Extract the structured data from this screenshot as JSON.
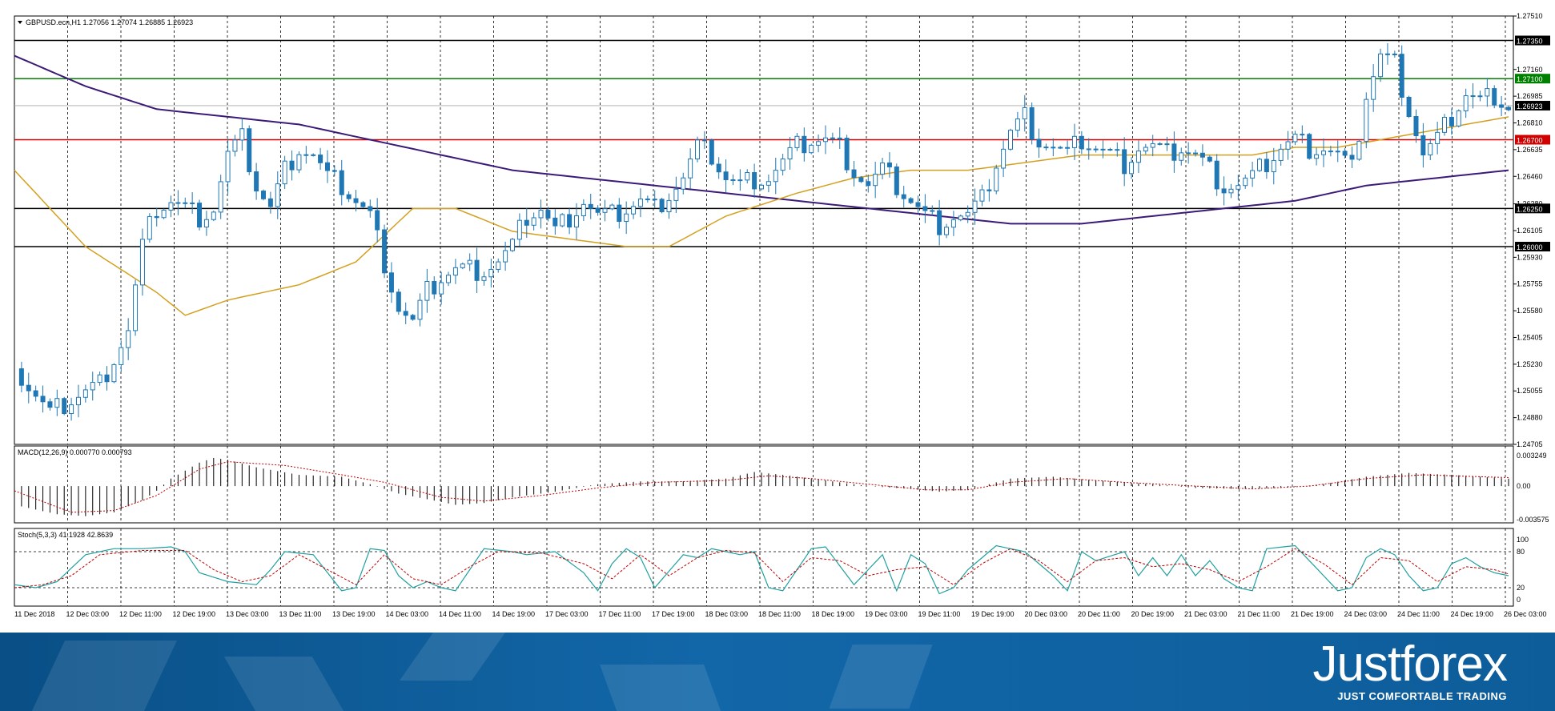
{
  "chart_data": {
    "type": "candlestick",
    "header": {
      "symbol": "GBPUSD.ecn,H1",
      "ohlc": "1.27056 1.27074 1.26885 1.26923"
    },
    "price_axis": {
      "ticks": [
        "1.27510",
        "1.27160",
        "1.26985",
        "1.26810",
        "1.26635",
        "1.26460",
        "1.26280",
        "1.26105",
        "1.25930",
        "1.25755",
        "1.25580",
        "1.25405",
        "1.25230",
        "1.25055",
        "1.24880",
        "1.24705"
      ],
      "range": [
        1.24705,
        1.2751
      ]
    },
    "levels": [
      {
        "price": 1.2735,
        "label": "1.27350",
        "color": "#000000"
      },
      {
        "price": 1.271,
        "label": "1.27100",
        "color": "#008000"
      },
      {
        "price": 1.267,
        "label": "1.26700",
        "color": "#d00000"
      },
      {
        "price": 1.2625,
        "label": "1.26250",
        "color": "#000000"
      },
      {
        "price": 1.26,
        "label": "1.26000",
        "color": "#000000"
      }
    ],
    "current_price": {
      "price": 1.26923,
      "label": "1.26923"
    },
    "time_axis": [
      "11 Dec 2018",
      "12 Dec 03:00",
      "12 Dec 11:00",
      "12 Dec 19:00",
      "13 Dec 03:00",
      "13 Dec 11:00",
      "13 Dec 19:00",
      "14 Dec 03:00",
      "14 Dec 11:00",
      "14 Dec 19:00",
      "17 Dec 03:00",
      "17 Dec 11:00",
      "17 Dec 19:00",
      "18 Dec 03:00",
      "18 Dec 11:00",
      "18 Dec 19:00",
      "19 Dec 03:00",
      "19 Dec 11:00",
      "19 Dec 19:00",
      "20 Dec 03:00",
      "20 Dec 11:00",
      "20 Dec 19:00",
      "21 Dec 03:00",
      "21 Dec 11:00",
      "21 Dec 19:00",
      "24 Dec 03:00",
      "24 Dec 11:00",
      "24 Dec 19:00",
      "26 Dec 03:00"
    ],
    "close_path": [
      [
        0,
        1.252
      ],
      [
        5,
        1.249
      ],
      [
        8,
        1.25
      ],
      [
        12,
        1.251
      ],
      [
        16,
        1.2545
      ],
      [
        18,
        1.26
      ],
      [
        20,
        1.2625
      ],
      [
        22,
        1.263
      ],
      [
        24,
        1.2625
      ],
      [
        26,
        1.262
      ],
      [
        28,
        1.2625
      ],
      [
        30,
        1.266
      ],
      [
        32,
        1.267
      ],
      [
        34,
        1.264
      ],
      [
        36,
        1.2625
      ],
      [
        38,
        1.265
      ],
      [
        40,
        1.2665
      ],
      [
        42,
        1.266
      ],
      [
        44,
        1.2645
      ],
      [
        46,
        1.264
      ],
      [
        48,
        1.263
      ],
      [
        50,
        1.262
      ],
      [
        52,
        1.259
      ],
      [
        54,
        1.256
      ],
      [
        56,
        1.255
      ],
      [
        58,
        1.257
      ],
      [
        60,
        1.258
      ],
      [
        62,
        1.2585
      ],
      [
        64,
        1.2585
      ],
      [
        66,
        1.2585
      ],
      [
        68,
        1.259
      ],
      [
        70,
        1.26
      ],
      [
        72,
        1.262
      ],
      [
        74,
        1.2625
      ],
      [
        76,
        1.261
      ],
      [
        78,
        1.262
      ],
      [
        80,
        1.263
      ],
      [
        82,
        1.262
      ],
      [
        84,
        1.262
      ],
      [
        86,
        1.2625
      ],
      [
        88,
        1.263
      ],
      [
        90,
        1.2625
      ],
      [
        92,
        1.2635
      ],
      [
        94,
        1.2645
      ],
      [
        96,
        1.2665
      ],
      [
        98,
        1.266
      ],
      [
        100,
        1.2645
      ],
      [
        102,
        1.264
      ],
      [
        104,
        1.2645
      ],
      [
        106,
        1.2645
      ],
      [
        108,
        1.2655
      ],
      [
        110,
        1.2665
      ],
      [
        112,
        1.267
      ],
      [
        114,
        1.267
      ],
      [
        116,
        1.2665
      ],
      [
        118,
        1.265
      ],
      [
        120,
        1.264
      ],
      [
        122,
        1.265
      ],
      [
        124,
        1.264
      ],
      [
        126,
        1.263
      ],
      [
        128,
        1.262
      ],
      [
        130,
        1.2615
      ],
      [
        132,
        1.262
      ],
      [
        134,
        1.262
      ],
      [
        136,
        1.263
      ],
      [
        138,
        1.2655
      ],
      [
        140,
        1.2675
      ],
      [
        142,
        1.2685
      ],
      [
        144,
        1.267
      ],
      [
        146,
        1.2665
      ],
      [
        148,
        1.266
      ],
      [
        150,
        1.267
      ],
      [
        152,
        1.2665
      ],
      [
        154,
        1.266
      ],
      [
        156,
        1.2655
      ],
      [
        158,
        1.2665
      ],
      [
        160,
        1.2665
      ],
      [
        162,
        1.266
      ],
      [
        164,
        1.2665
      ],
      [
        166,
        1.266
      ],
      [
        168,
        1.265
      ],
      [
        170,
        1.264
      ],
      [
        172,
        1.264
      ],
      [
        174,
        1.2645
      ],
      [
        176,
        1.2655
      ],
      [
        178,
        1.2665
      ],
      [
        180,
        1.267
      ],
      [
        182,
        1.2665
      ],
      [
        184,
        1.2665
      ],
      [
        186,
        1.266
      ],
      [
        188,
        1.265
      ],
      [
        190,
        1.27
      ],
      [
        192,
        1.2725
      ],
      [
        194,
        1.272
      ],
      [
        196,
        1.269
      ],
      [
        198,
        1.266
      ],
      [
        200,
        1.267
      ],
      [
        202,
        1.2685
      ],
      [
        204,
        1.27
      ],
      [
        206,
        1.2695
      ],
      [
        208,
        1.27
      ],
      [
        210,
        1.2692
      ]
    ],
    "ma_fast": [
      [
        0,
        1.265
      ],
      [
        10,
        1.26
      ],
      [
        20,
        1.257
      ],
      [
        24,
        1.2555
      ],
      [
        30,
        1.2565
      ],
      [
        40,
        1.2575
      ],
      [
        48,
        1.259
      ],
      [
        56,
        1.2625
      ],
      [
        62,
        1.2625
      ],
      [
        70,
        1.261
      ],
      [
        78,
        1.2605
      ],
      [
        86,
        1.26
      ],
      [
        92,
        1.26
      ],
      [
        100,
        1.262
      ],
      [
        110,
        1.2635
      ],
      [
        118,
        1.2645
      ],
      [
        126,
        1.265
      ],
      [
        134,
        1.265
      ],
      [
        142,
        1.2655
      ],
      [
        150,
        1.266
      ],
      [
        158,
        1.266
      ],
      [
        166,
        1.266
      ],
      [
        174,
        1.266
      ],
      [
        180,
        1.2665
      ],
      [
        186,
        1.2665
      ],
      [
        192,
        1.267
      ],
      [
        198,
        1.2675
      ],
      [
        204,
        1.268
      ],
      [
        210,
        1.2685
      ]
    ],
    "ma_slow": [
      [
        0,
        1.2725
      ],
      [
        10,
        1.2705
      ],
      [
        20,
        1.269
      ],
      [
        30,
        1.2685
      ],
      [
        40,
        1.268
      ],
      [
        50,
        1.267
      ],
      [
        60,
        1.266
      ],
      [
        70,
        1.265
      ],
      [
        80,
        1.2645
      ],
      [
        90,
        1.264
      ],
      [
        100,
        1.2635
      ],
      [
        110,
        1.263
      ],
      [
        120,
        1.2625
      ],
      [
        130,
        1.262
      ],
      [
        140,
        1.2615
      ],
      [
        150,
        1.2615
      ],
      [
        160,
        1.262
      ],
      [
        170,
        1.2625
      ],
      [
        180,
        1.263
      ],
      [
        190,
        1.264
      ],
      [
        200,
        1.2645
      ],
      [
        210,
        1.265
      ]
    ],
    "macd": {
      "label": "MACD(12,26,9) 0.000770 0.000793",
      "ticks": [
        "0.003249",
        "0.00",
        "-0.003575"
      ],
      "range": [
        -0.003575,
        0.003249
      ],
      "histogram": [
        [
          0,
          -0.002
        ],
        [
          6,
          -0.003
        ],
        [
          10,
          -0.0032
        ],
        [
          14,
          -0.0028
        ],
        [
          18,
          -0.0015
        ],
        [
          20,
          -0.0005
        ],
        [
          22,
          0.0008
        ],
        [
          26,
          0.0025
        ],
        [
          28,
          0.003
        ],
        [
          30,
          0.0028
        ],
        [
          34,
          0.002
        ],
        [
          40,
          0.0012
        ],
        [
          46,
          0.001
        ],
        [
          50,
          0.0002
        ],
        [
          54,
          -0.0008
        ],
        [
          58,
          -0.0014
        ],
        [
          62,
          -0.002
        ],
        [
          66,
          -0.0018
        ],
        [
          70,
          -0.0012
        ],
        [
          76,
          -0.0006
        ],
        [
          82,
          0.0002
        ],
        [
          88,
          0.0005
        ],
        [
          94,
          0.0005
        ],
        [
          100,
          0.0008
        ],
        [
          104,
          0.0015
        ],
        [
          108,
          0.0012
        ],
        [
          114,
          0.0006
        ],
        [
          120,
          0.0
        ],
        [
          126,
          -0.0003
        ],
        [
          130,
          -0.0006
        ],
        [
          134,
          -0.0004
        ],
        [
          140,
          0.0008
        ],
        [
          146,
          0.001
        ],
        [
          152,
          0.0006
        ],
        [
          160,
          0.0002
        ],
        [
          166,
          -0.0002
        ],
        [
          172,
          -0.0003
        ],
        [
          178,
          -0.0002
        ],
        [
          184,
          0.0002
        ],
        [
          190,
          0.001
        ],
        [
          196,
          0.0014
        ],
        [
          202,
          0.0012
        ],
        [
          210,
          0.0008
        ]
      ],
      "signal": [
        [
          0,
          -0.0005
        ],
        [
          8,
          -0.0028
        ],
        [
          14,
          -0.0026
        ],
        [
          20,
          -0.001
        ],
        [
          26,
          0.0018
        ],
        [
          30,
          0.0026
        ],
        [
          38,
          0.0022
        ],
        [
          46,
          0.0012
        ],
        [
          52,
          0.0004
        ],
        [
          60,
          -0.0012
        ],
        [
          66,
          -0.0016
        ],
        [
          74,
          -0.001
        ],
        [
          82,
          -0.0002
        ],
        [
          90,
          0.0004
        ],
        [
          100,
          0.0006
        ],
        [
          106,
          0.0011
        ],
        [
          112,
          0.0008
        ],
        [
          120,
          0.0002
        ],
        [
          128,
          -0.0004
        ],
        [
          134,
          -0.0004
        ],
        [
          140,
          0.0004
        ],
        [
          148,
          0.0008
        ],
        [
          156,
          0.0004
        ],
        [
          166,
          0.0
        ],
        [
          174,
          -0.0003
        ],
        [
          182,
          0.0
        ],
        [
          190,
          0.0008
        ],
        [
          198,
          0.0012
        ],
        [
          210,
          0.0009
        ]
      ]
    },
    "stochastic": {
      "label": "Stoch(5,3,3) 41.1928 42.8639",
      "ticks": [
        "100",
        "80",
        "20",
        "0"
      ],
      "range": [
        0,
        100
      ],
      "main": [
        [
          0,
          25
        ],
        [
          3,
          20
        ],
        [
          6,
          30
        ],
        [
          10,
          75
        ],
        [
          14,
          85
        ],
        [
          18,
          85
        ],
        [
          22,
          88
        ],
        [
          24,
          80
        ],
        [
          26,
          45
        ],
        [
          30,
          30
        ],
        [
          34,
          25
        ],
        [
          36,
          50
        ],
        [
          38,
          80
        ],
        [
          42,
          75
        ],
        [
          46,
          15
        ],
        [
          48,
          20
        ],
        [
          50,
          85
        ],
        [
          52,
          82
        ],
        [
          54,
          40
        ],
        [
          56,
          20
        ],
        [
          58,
          30
        ],
        [
          60,
          20
        ],
        [
          62,
          15
        ],
        [
          66,
          85
        ],
        [
          70,
          80
        ],
        [
          72,
          75
        ],
        [
          76,
          80
        ],
        [
          80,
          45
        ],
        [
          82,
          15
        ],
        [
          84,
          60
        ],
        [
          86,
          85
        ],
        [
          88,
          70
        ],
        [
          90,
          20
        ],
        [
          94,
          75
        ],
        [
          96,
          70
        ],
        [
          98,
          85
        ],
        [
          100,
          80
        ],
        [
          102,
          75
        ],
        [
          104,
          80
        ],
        [
          106,
          20
        ],
        [
          108,
          15
        ],
        [
          112,
          85
        ],
        [
          114,
          88
        ],
        [
          118,
          25
        ],
        [
          122,
          75
        ],
        [
          124,
          15
        ],
        [
          126,
          75
        ],
        [
          128,
          60
        ],
        [
          130,
          10
        ],
        [
          132,
          20
        ],
        [
          134,
          50
        ],
        [
          136,
          70
        ],
        [
          138,
          90
        ],
        [
          142,
          80
        ],
        [
          146,
          40
        ],
        [
          148,
          15
        ],
        [
          150,
          80
        ],
        [
          152,
          65
        ],
        [
          156,
          80
        ],
        [
          158,
          40
        ],
        [
          160,
          70
        ],
        [
          162,
          40
        ],
        [
          164,
          75
        ],
        [
          166,
          40
        ],
        [
          168,
          65
        ],
        [
          170,
          35
        ],
        [
          172,
          20
        ],
        [
          174,
          15
        ],
        [
          176,
          85
        ],
        [
          180,
          90
        ],
        [
          184,
          40
        ],
        [
          186,
          15
        ],
        [
          188,
          20
        ],
        [
          190,
          70
        ],
        [
          192,
          85
        ],
        [
          194,
          75
        ],
        [
          196,
          40
        ],
        [
          198,
          15
        ],
        [
          200,
          20
        ],
        [
          202,
          60
        ],
        [
          204,
          70
        ],
        [
          206,
          55
        ],
        [
          208,
          45
        ],
        [
          210,
          40
        ]
      ],
      "signal": [
        [
          0,
          20
        ],
        [
          4,
          25
        ],
        [
          8,
          40
        ],
        [
          12,
          75
        ],
        [
          18,
          82
        ],
        [
          24,
          82
        ],
        [
          28,
          50
        ],
        [
          32,
          30
        ],
        [
          36,
          40
        ],
        [
          40,
          75
        ],
        [
          44,
          50
        ],
        [
          48,
          25
        ],
        [
          52,
          75
        ],
        [
          56,
          35
        ],
        [
          60,
          25
        ],
        [
          64,
          55
        ],
        [
          68,
          80
        ],
        [
          74,
          78
        ],
        [
          80,
          60
        ],
        [
          84,
          35
        ],
        [
          88,
          75
        ],
        [
          92,
          40
        ],
        [
          96,
          70
        ],
        [
          100,
          82
        ],
        [
          104,
          78
        ],
        [
          108,
          30
        ],
        [
          112,
          70
        ],
        [
          116,
          65
        ],
        [
          120,
          40
        ],
        [
          124,
          50
        ],
        [
          128,
          55
        ],
        [
          132,
          25
        ],
        [
          136,
          60
        ],
        [
          140,
          85
        ],
        [
          144,
          65
        ],
        [
          148,
          30
        ],
        [
          152,
          65
        ],
        [
          156,
          70
        ],
        [
          160,
          55
        ],
        [
          164,
          60
        ],
        [
          168,
          50
        ],
        [
          172,
          30
        ],
        [
          176,
          55
        ],
        [
          180,
          85
        ],
        [
          184,
          60
        ],
        [
          188,
          25
        ],
        [
          192,
          70
        ],
        [
          196,
          65
        ],
        [
          200,
          30
        ],
        [
          204,
          55
        ],
        [
          208,
          50
        ],
        [
          210,
          43
        ]
      ]
    }
  },
  "branding": {
    "logo": "Justforex",
    "tagline": "JUST COMFORTABLE TRADING"
  },
  "colors": {
    "candle": "#1f77b4",
    "ma_fast": "#d4a020",
    "ma_slow": "#3c1a78",
    "macd_signal": "#c00000",
    "stoch_main": "#20a0a0",
    "stoch_signal": "#c00000"
  }
}
